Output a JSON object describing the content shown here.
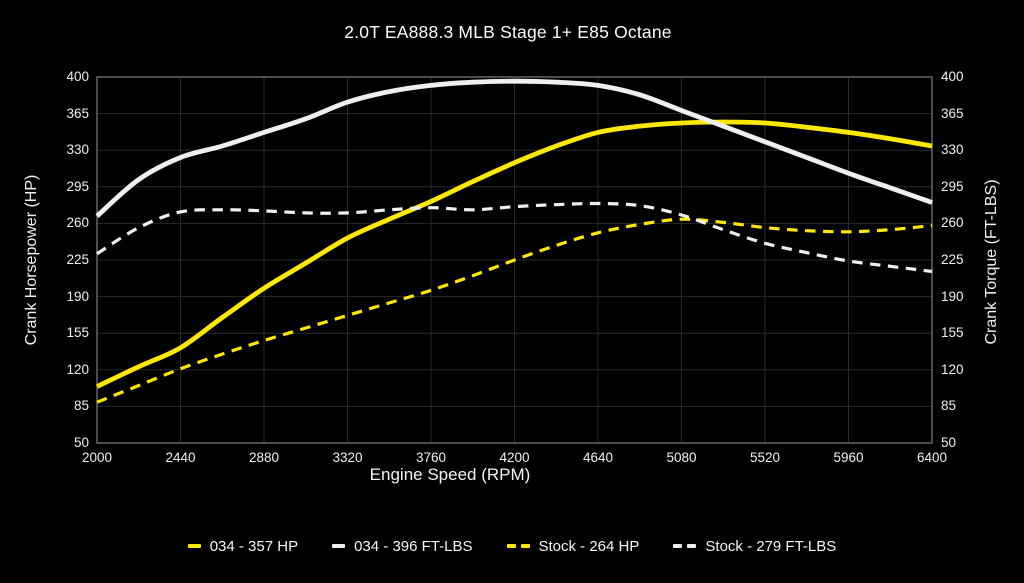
{
  "title": "2.0T EA888.3 MLB Stage 1+ E85 Octane",
  "axes": {
    "left_label": "Crank Horsepower (HP)",
    "right_label": "Crank Torque (FT-LBS)",
    "x_label": "Engine Speed (RPM)",
    "y_ticks": [
      400,
      365,
      330,
      295,
      260,
      225,
      190,
      155,
      120,
      85,
      50
    ],
    "x_ticks": [
      2000,
      2440,
      2880,
      3320,
      3760,
      4200,
      4640,
      5080,
      5520,
      5960,
      6400
    ]
  },
  "colors": {
    "background": "#000000",
    "grid": "#2a2a2a",
    "border": "#7f7f7f",
    "text": "#f5f5f5",
    "yellow": "#fde803",
    "white": "#efefef"
  },
  "chart_data": {
    "type": "line",
    "title": "2.0T EA888.3 MLB Stage 1+ E85 Octane",
    "xlabel": "Engine Speed (RPM)",
    "ylabel_left": "Crank Horsepower (HP)",
    "ylabel_right": "Crank Torque (FT-LBS)",
    "xlim": [
      2000,
      6400
    ],
    "ylim": [
      50,
      400
    ],
    "grid": true,
    "legend_position": "bottom",
    "x": [
      2000,
      2220,
      2440,
      2660,
      2880,
      3100,
      3320,
      3540,
      3760,
      3980,
      4200,
      4420,
      4640,
      4860,
      5080,
      5300,
      5520,
      5740,
      5960,
      6180,
      6400
    ],
    "series": [
      {
        "name": "034 - 357 HP",
        "color": "#fde803",
        "style": "solid",
        "axis": "HP",
        "values": [
          104,
          123,
          141,
          170,
          198,
          222,
          246,
          264,
          281,
          300,
          318,
          334,
          347,
          353,
          356,
          357,
          356,
          352,
          347,
          341,
          334
        ]
      },
      {
        "name": "034 - 396 FT-LBS",
        "color": "#efefef",
        "style": "solid",
        "axis": "FT-LBS",
        "values": [
          267,
          302,
          323,
          334,
          347,
          360,
          376,
          386,
          392,
          395,
          396,
          395,
          392,
          383,
          368,
          353,
          338,
          323,
          308,
          294,
          280
        ]
      },
      {
        "name": "Stock - 264 HP",
        "color": "#fde803",
        "style": "dashed",
        "axis": "HP",
        "values": [
          89,
          105,
          121,
          135,
          148,
          160,
          172,
          184,
          196,
          210,
          225,
          239,
          251,
          259,
          264,
          261,
          256,
          253,
          252,
          254,
          258
        ]
      },
      {
        "name": "Stock - 279 FT-LBS",
        "color": "#efefef",
        "style": "dashed",
        "axis": "FT-LBS",
        "values": [
          231,
          256,
          271,
          273,
          272,
          270,
          270,
          273,
          275,
          273,
          276,
          278,
          279,
          277,
          268,
          254,
          241,
          232,
          224,
          219,
          214
        ]
      }
    ]
  }
}
